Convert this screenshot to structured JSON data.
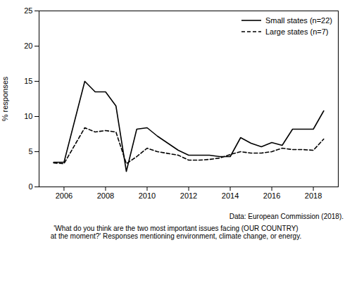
{
  "chart_data": {
    "type": "line",
    "ylabel": "% responses",
    "x": [
      2005.5,
      2006.0,
      2007.0,
      2007.5,
      2008.0,
      2008.5,
      2009.0,
      2009.5,
      2010.0,
      2010.5,
      2011.5,
      2012.0,
      2012.5,
      2013.0,
      2013.5,
      2014.0,
      2014.5,
      2015.0,
      2015.5,
      2016.0,
      2016.5,
      2017.0,
      2017.5,
      2018.0,
      2018.5
    ],
    "series": [
      {
        "name": "Small states (n=22)",
        "color": "#000000",
        "line_style": "solid",
        "values": [
          3.5,
          3.5,
          15.0,
          13.5,
          13.5,
          11.5,
          2.2,
          8.2,
          8.4,
          7.2,
          5.2,
          4.5,
          4.5,
          4.5,
          4.3,
          4.3,
          7.0,
          6.2,
          5.7,
          6.3,
          5.9,
          8.2,
          8.2,
          8.2,
          10.8
        ]
      },
      {
        "name": "Large states (n=7)",
        "color": "#000000",
        "line_style": "dashed",
        "values": [
          3.4,
          3.3,
          8.4,
          7.8,
          8.0,
          7.8,
          3.3,
          4.3,
          5.5,
          5.0,
          4.5,
          3.8,
          3.8,
          3.9,
          4.1,
          4.6,
          5.0,
          4.8,
          4.8,
          5.0,
          5.5,
          5.3,
          5.3,
          5.2,
          6.8
        ]
      }
    ],
    "xlim": [
      2004.8,
      2019.2
    ],
    "ylim": [
      0,
      25
    ],
    "xticks": [
      2006,
      2008,
      2010,
      2012,
      2014,
      2016,
      2018
    ],
    "yticks": [
      0,
      5,
      10,
      15,
      20,
      25
    ],
    "grid": false,
    "legend": "upper right",
    "annotations": [
      "Data: European Commission (2018).",
      "'What do you think are the two most important issues facing (OUR COUNTRY)",
      "at the moment?' Responses mentioning environment, climate change, or energy."
    ]
  }
}
